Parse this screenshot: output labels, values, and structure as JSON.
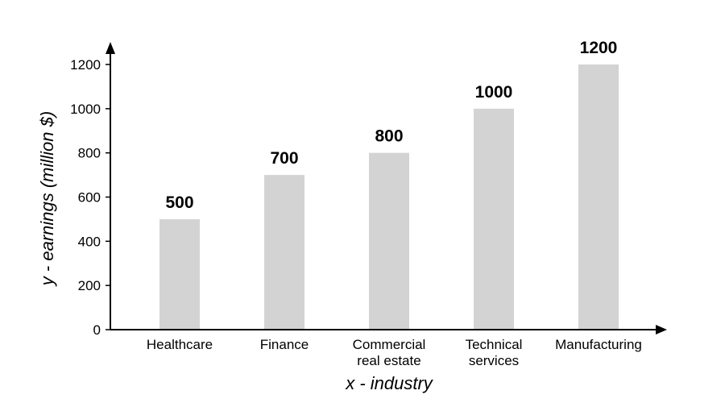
{
  "chart_data": {
    "type": "bar",
    "categories": [
      "Healthcare",
      "Finance",
      "Commercial real estate",
      "Technical services",
      "Manufacturing"
    ],
    "category_lines": [
      [
        "Healthcare"
      ],
      [
        "Finance"
      ],
      [
        "Commercial",
        "real estate"
      ],
      [
        "Technical",
        "services"
      ],
      [
        "Manufacturing"
      ]
    ],
    "values": [
      500,
      700,
      800,
      1000,
      1200
    ],
    "title": "",
    "xlabel": "x - industry",
    "ylabel": "y - earnings (million $)",
    "ylim": [
      0,
      1200
    ],
    "yticks": [
      0,
      200,
      400,
      600,
      800,
      1000,
      1200
    ],
    "grid": false,
    "bar_color": "#d3d3d3",
    "axis_color": "#000000"
  }
}
